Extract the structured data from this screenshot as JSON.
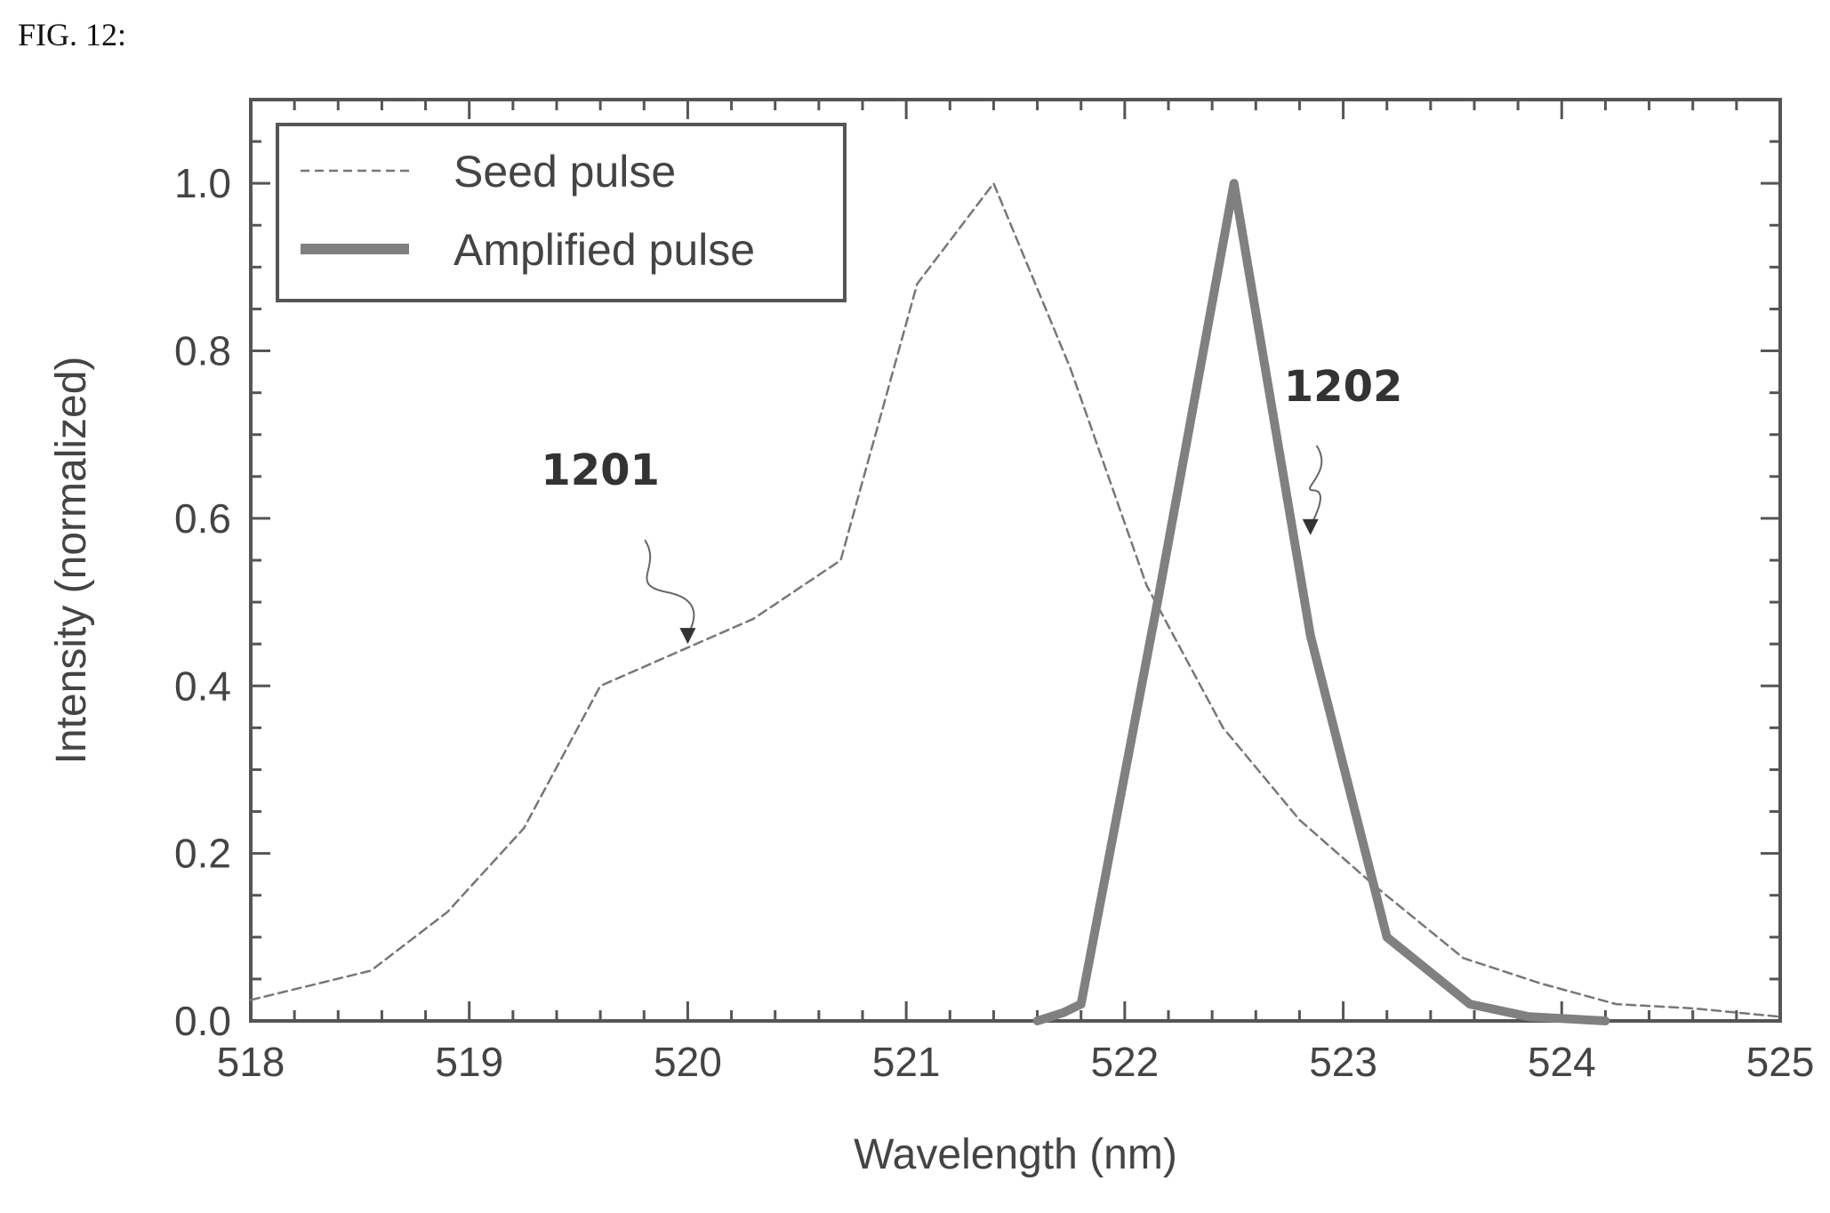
{
  "figure_label": "FIG. 12:",
  "chart_data": {
    "type": "line",
    "xlabel": "Wavelength (nm)",
    "ylabel": "Intensity (normalized)",
    "xlim": [
      518,
      525
    ],
    "ylim": [
      0,
      1.1
    ],
    "xticks": [
      518,
      519,
      520,
      521,
      522,
      523,
      524,
      525
    ],
    "yticks": [
      0.0,
      0.2,
      0.4,
      0.6,
      0.8,
      1.0
    ],
    "ytick_labels": [
      "0.0",
      "0.2",
      "0.4",
      "0.6",
      "0.8",
      "1.0"
    ],
    "grid": false,
    "legend": "top-left",
    "series": [
      {
        "name": "Seed pulse",
        "style": "dashed",
        "color": "#777777",
        "x": [
          518.0,
          518.55,
          518.9,
          519.25,
          519.6,
          519.95,
          520.3,
          520.7,
          521.05,
          521.4,
          521.75,
          522.1,
          522.45,
          522.8,
          523.15,
          523.55,
          523.9,
          524.25,
          524.6,
          525.0
        ],
        "y": [
          0.025,
          0.06,
          0.13,
          0.23,
          0.4,
          0.44,
          0.48,
          0.55,
          0.88,
          1.0,
          0.78,
          0.52,
          0.35,
          0.24,
          0.16,
          0.075,
          0.045,
          0.02,
          0.015,
          0.005
        ]
      },
      {
        "name": "Amplified pulse",
        "style": "solid",
        "color": "#808080",
        "x": [
          521.6,
          521.72,
          521.8,
          522.15,
          522.5,
          522.85,
          523.2,
          523.58,
          523.85,
          524.2
        ],
        "y": [
          0.0,
          0.01,
          0.02,
          0.5,
          1.0,
          0.46,
          0.1,
          0.02,
          0.005,
          0.0
        ]
      }
    ],
    "annotations": [
      {
        "text": "1201",
        "x": 519.6,
        "y": 0.64,
        "target_x": 520.0,
        "target_y": 0.45
      },
      {
        "text": "1202",
        "x": 523.0,
        "y": 0.74,
        "target_x": 522.85,
        "target_y": 0.58
      }
    ]
  }
}
